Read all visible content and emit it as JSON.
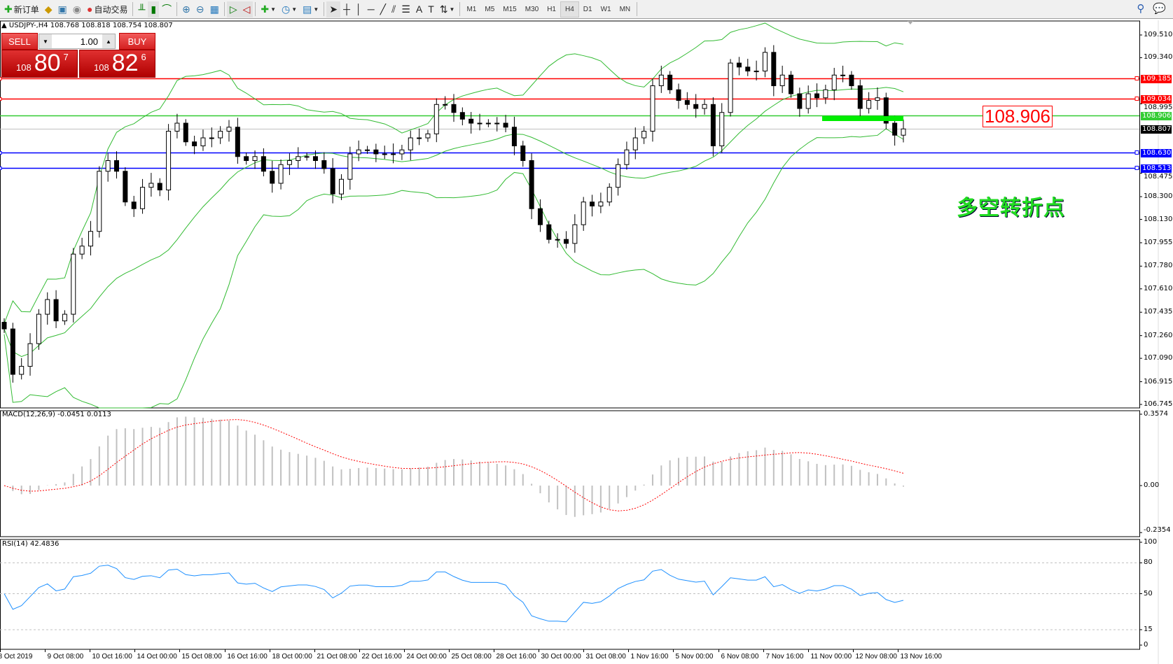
{
  "toolbar": {
    "new_order": "新订单",
    "auto_trading": "自动交易",
    "timeframes": [
      "M1",
      "M5",
      "M15",
      "M30",
      "H1",
      "H4",
      "D1",
      "W1",
      "MN"
    ],
    "active_timeframe": "H4"
  },
  "chart": {
    "header": "USDJPY-,H4  108.768 108.818 108.754 108.807",
    "sell_label": "SELL",
    "buy_label": "BUY",
    "lots": "1.00",
    "sell_price": {
      "small": "108",
      "big": "80",
      "tiny": "7"
    },
    "buy_price": {
      "small": "108",
      "big": "82",
      "tiny": "6"
    },
    "annotation_price": "108.906",
    "annotation_text": "多空转折点"
  },
  "price_axis": [
    "109.510",
    "109.340",
    "108.995",
    "108.475",
    "108.300",
    "108.130",
    "107.955",
    "107.780",
    "107.610",
    "107.435",
    "107.260",
    "107.090",
    "106.915",
    "106.745"
  ],
  "level_lines": [
    {
      "price": "109.185",
      "color": "#ff0000"
    },
    {
      "price": "109.034",
      "color": "#ff0000"
    },
    {
      "price": "108.906",
      "color": "#33cc33"
    },
    {
      "price": "108.807",
      "color": "#000000"
    },
    {
      "price": "108.630",
      "color": "#0000ff"
    },
    {
      "price": "108.513",
      "color": "#0000ff"
    }
  ],
  "macd": {
    "label": "MACD(12,26,9) -0.0451 0.0113",
    "axis": [
      "0.3574",
      "0.00",
      "-0.2354"
    ]
  },
  "rsi": {
    "label": "RSI(14) 42.4836",
    "axis": [
      "100",
      "80",
      "50",
      "15",
      "0"
    ]
  },
  "time_axis": [
    "8 Oct 2019",
    "9 Oct 08:00",
    "10 Oct 16:00",
    "14 Oct 00:00",
    "15 Oct 08:00",
    "16 Oct 16:00",
    "18 Oct 00:00",
    "21 Oct 08:00",
    "22 Oct 16:00",
    "24 Oct 00:00",
    "25 Oct 08:00",
    "28 Oct 16:00",
    "30 Oct 00:00",
    "31 Oct 08:00",
    "1 Nov 16:00",
    "5 Nov 00:00",
    "6 Nov 08:00",
    "7 Nov 16:00",
    "11 Nov 00:00",
    "12 Nov 08:00",
    "13 Nov 16:00"
  ],
  "chart_data": {
    "type": "candlestick",
    "symbol": "USDJPY-",
    "timeframe": "H4",
    "ylim": [
      106.745,
      109.58
    ],
    "indicators": [
      "Bollinger Bands(20)",
      "MACD(12,26,9)",
      "RSI(14)"
    ],
    "close": [
      107.31,
      106.97,
      107.03,
      107.2,
      107.42,
      107.53,
      107.37,
      107.42,
      107.87,
      107.93,
      108.04,
      108.49,
      108.57,
      108.49,
      108.26,
      108.21,
      108.37,
      108.4,
      108.35,
      108.79,
      108.85,
      108.71,
      108.68,
      108.74,
      108.74,
      108.79,
      108.82,
      108.6,
      108.57,
      108.6,
      108.49,
      108.4,
      108.54,
      108.57,
      108.6,
      108.6,
      108.57,
      108.51,
      108.32,
      108.43,
      108.62,
      108.65,
      108.65,
      108.62,
      108.62,
      108.62,
      108.65,
      108.74,
      108.74,
      108.77,
      108.99,
      108.99,
      108.93,
      108.88,
      108.85,
      108.85,
      108.85,
      108.85,
      108.82,
      108.68,
      108.57,
      108.21,
      108.09,
      107.98,
      107.98,
      107.95,
      108.09,
      108.26,
      108.23,
      108.26,
      108.37,
      108.54,
      108.65,
      108.74,
      108.79,
      109.13,
      109.21,
      109.1,
      109.02,
      108.99,
      108.96,
      108.99,
      108.68,
      108.93,
      109.3,
      109.27,
      109.24,
      109.24,
      109.38,
      109.13,
      109.21,
      109.07,
      108.96,
      109.07,
      109.04,
      109.1,
      109.21,
      109.21,
      109.13,
      108.96,
      109.02,
      109.04,
      108.85,
      108.76,
      108.807
    ]
  }
}
